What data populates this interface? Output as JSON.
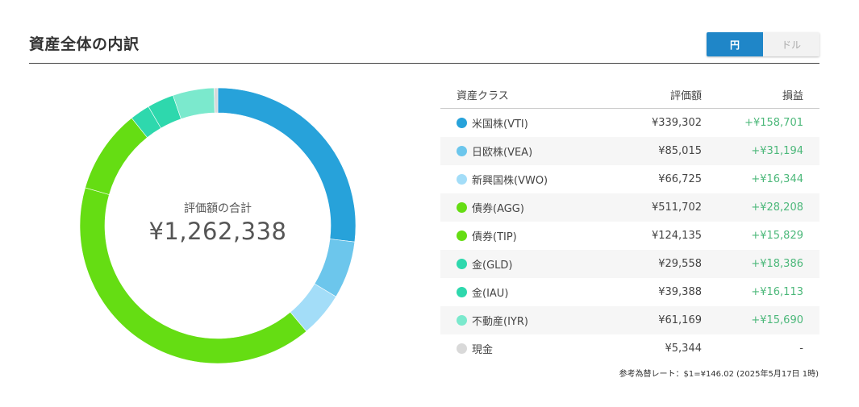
{
  "section": {
    "title": "資産全体の内訳"
  },
  "currency_toggle": {
    "options": [
      {
        "label": "円",
        "active": true
      },
      {
        "label": "ドル",
        "active": false
      }
    ]
  },
  "chart_data": {
    "type": "pie",
    "center_label": "評価額の合計",
    "center_total": "¥1,262,338",
    "total": 1262338,
    "slices": [
      {
        "label": "米国株(VTI)",
        "value": 339302,
        "color": "#27a2da"
      },
      {
        "label": "日欧株(VEA)",
        "value": 85015,
        "color": "#6cc6ec"
      },
      {
        "label": "新興国株(VWO)",
        "value": 66725,
        "color": "#a3ddf8"
      },
      {
        "label": "債券(AGG)",
        "value": 511702,
        "color": "#65dd13"
      },
      {
        "label": "債券(TIP)",
        "value": 124135,
        "color": "#65dd13"
      },
      {
        "label": "金(GLD)",
        "value": 29558,
        "color": "#2ed8ad"
      },
      {
        "label": "金(IAU)",
        "value": 39388,
        "color": "#2ed8ad"
      },
      {
        "label": "不動産(IYR)",
        "value": 61169,
        "color": "#7be9cd"
      },
      {
        "label": "現金",
        "value": 5344,
        "color": "#d9d9d9"
      }
    ]
  },
  "table": {
    "headers": {
      "name": "資産クラス",
      "value": "評価額",
      "pl": "損益"
    },
    "rows": [
      {
        "name": "米国株(VTI)",
        "value": "¥339,302",
        "pl": "+¥158,701",
        "color": "#27a2da"
      },
      {
        "name": "日欧株(VEA)",
        "value": "¥85,015",
        "pl": "+¥31,194",
        "color": "#6cc6ec"
      },
      {
        "name": "新興国株(VWO)",
        "value": "¥66,725",
        "pl": "+¥16,344",
        "color": "#a3ddf8"
      },
      {
        "name": "債券(AGG)",
        "value": "¥511,702",
        "pl": "+¥28,208",
        "color": "#65dd13"
      },
      {
        "name": "債券(TIP)",
        "value": "¥124,135",
        "pl": "+¥15,829",
        "color": "#65dd13"
      },
      {
        "name": "金(GLD)",
        "value": "¥29,558",
        "pl": "+¥18,386",
        "color": "#2ed8ad"
      },
      {
        "name": "金(IAU)",
        "value": "¥39,388",
        "pl": "+¥16,113",
        "color": "#2ed8ad"
      },
      {
        "name": "不動産(IYR)",
        "value": "¥61,169",
        "pl": "+¥15,690",
        "color": "#7be9cd"
      },
      {
        "name": "現金",
        "value": "¥5,344",
        "pl": "-",
        "color": "#d9d9d9"
      }
    ]
  },
  "footnote": "参考為替レート：$1=¥146.02 (2025年5月17日 1時)"
}
